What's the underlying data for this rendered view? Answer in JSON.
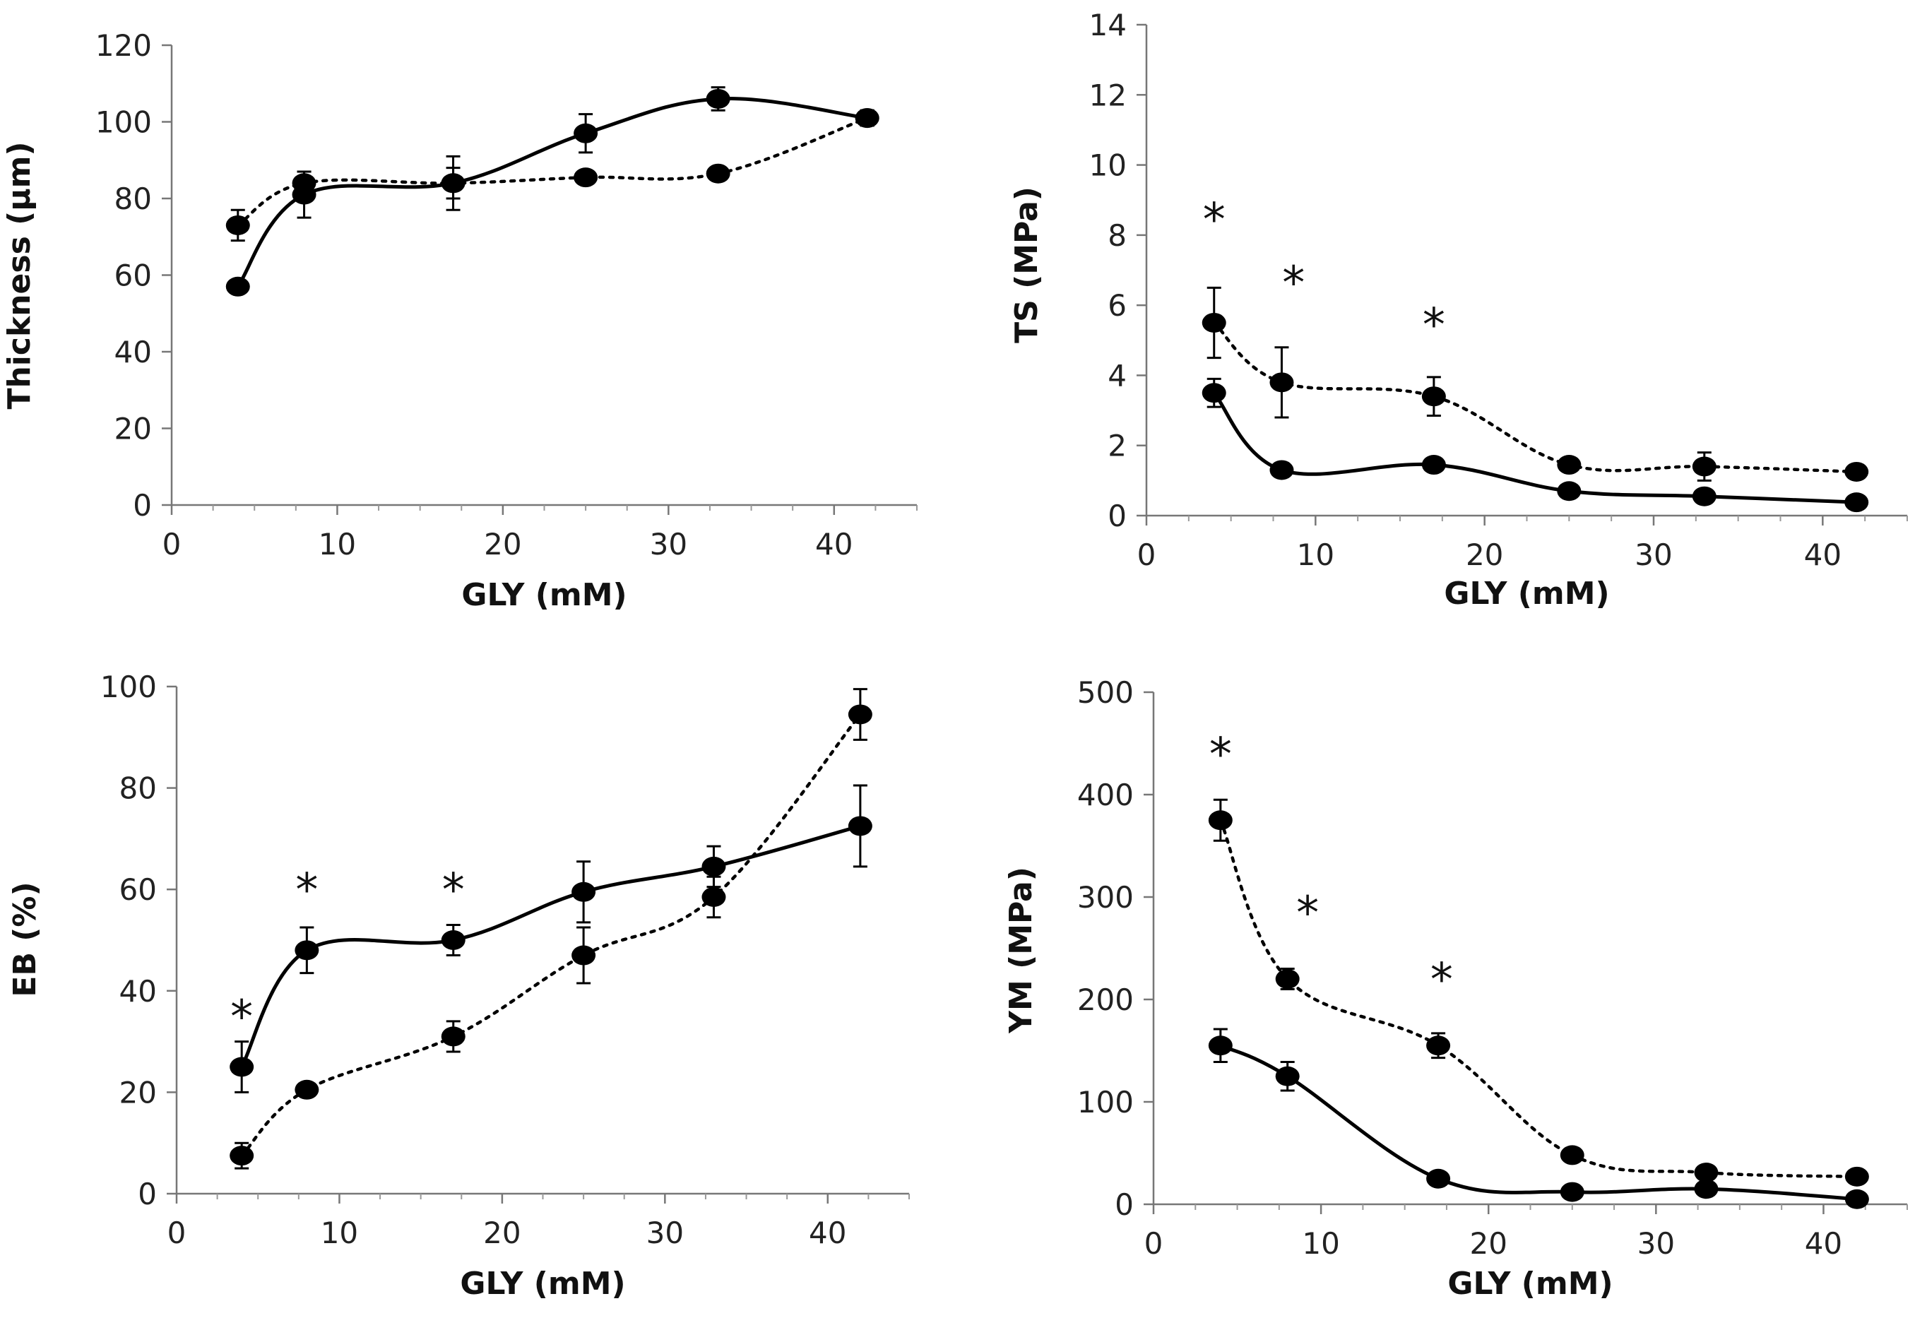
{
  "chart_data": [
    {
      "id": "thickness",
      "type": "line",
      "xlabel": "GLY (mM)",
      "ylabel": "Thickness (µm)",
      "xlim": [
        0,
        45
      ],
      "ylim": [
        0,
        120
      ],
      "xticks": [
        0,
        10,
        20,
        30,
        40
      ],
      "xtick_labels": [
        "0",
        "10",
        "20",
        "30",
        "40"
      ],
      "yticks": [
        0,
        20,
        40,
        60,
        80,
        100,
        120
      ],
      "ytick_labels": [
        "0",
        "20",
        "40",
        "60",
        "80",
        "100",
        "120"
      ],
      "x": [
        4,
        8,
        17,
        25,
        33,
        42
      ],
      "series": [
        {
          "name": "solid",
          "style": "solid",
          "values": [
            57,
            81,
            84,
            97,
            106,
            101
          ],
          "errors": [
            0,
            6,
            7,
            5,
            3,
            2
          ]
        },
        {
          "name": "dotted",
          "style": "dotted",
          "values": [
            73,
            84,
            84,
            85.5,
            86.5,
            101
          ],
          "errors": [
            4,
            3,
            4,
            0,
            0,
            2
          ]
        }
      ],
      "asterisks": []
    },
    {
      "id": "ts",
      "type": "line",
      "xlabel": "GLY (mM)",
      "ylabel": "TS (MPa)",
      "xlim": [
        0,
        45
      ],
      "ylim": [
        0,
        14
      ],
      "xticks": [
        0,
        10,
        20,
        30,
        40
      ],
      "xtick_labels": [
        "0",
        "10",
        "20",
        "30",
        "40"
      ],
      "yticks": [
        0,
        2,
        4,
        6,
        8,
        10,
        12,
        14
      ],
      "ytick_labels": [
        "0",
        "2",
        "4",
        "6",
        "8",
        "10",
        "12",
        "14"
      ],
      "x": [
        4,
        8,
        17,
        25,
        33,
        42
      ],
      "series": [
        {
          "name": "solid",
          "style": "solid",
          "values": [
            3.5,
            1.3,
            1.45,
            0.7,
            0.55,
            0.38
          ],
          "errors": [
            0.4,
            0.2,
            0.1,
            0.1,
            0.1,
            0.05
          ]
        },
        {
          "name": "dotted",
          "style": "dotted",
          "values": [
            5.5,
            3.8,
            3.4,
            1.45,
            1.4,
            1.25
          ],
          "errors": [
            1.0,
            1.0,
            0.55,
            0.1,
            0.4,
            0.1
          ]
        }
      ],
      "asterisks": [
        {
          "x": 4,
          "y": 8.6,
          "label": "*"
        },
        {
          "x": 8.7,
          "y": 6.8,
          "label": "*"
        },
        {
          "x": 17,
          "y": 5.6,
          "label": "*"
        }
      ]
    },
    {
      "id": "eb",
      "type": "line",
      "xlabel": "GLY (mM)",
      "ylabel": "EB (%)",
      "xlim": [
        0,
        45
      ],
      "ylim": [
        0,
        100
      ],
      "xticks": [
        0,
        10,
        20,
        30,
        40
      ],
      "xtick_labels": [
        "0",
        "10",
        "20",
        "30",
        "40"
      ],
      "yticks": [
        0,
        20,
        40,
        60,
        80,
        100
      ],
      "ytick_labels": [
        "0",
        "20",
        "40",
        "60",
        "80",
        "100"
      ],
      "x": [
        4,
        8,
        17,
        25,
        33,
        42
      ],
      "series": [
        {
          "name": "solid",
          "style": "solid",
          "values": [
            25,
            48,
            50,
            59.5,
            64.5,
            72.5
          ],
          "errors": [
            5,
            4.5,
            3,
            6,
            4,
            8
          ]
        },
        {
          "name": "dotted",
          "style": "dotted",
          "values": [
            7.5,
            20.5,
            31,
            47,
            58.5,
            94.5
          ],
          "errors": [
            2.5,
            1,
            3,
            5.5,
            4,
            5
          ]
        }
      ],
      "asterisks": [
        {
          "x": 4,
          "y": 36,
          "label": "*"
        },
        {
          "x": 8,
          "y": 61,
          "label": "*"
        },
        {
          "x": 17,
          "y": 61,
          "label": "*"
        }
      ]
    },
    {
      "id": "ym",
      "type": "line",
      "xlabel": "GLY (mM)",
      "ylabel": "YM (MPa)",
      "xlim": [
        0,
        45
      ],
      "ylim": [
        0,
        500
      ],
      "xticks": [
        0,
        10,
        20,
        30,
        40
      ],
      "xtick_labels": [
        "0",
        "10",
        "20",
        "30",
        "40"
      ],
      "yticks": [
        0,
        100,
        200,
        300,
        400,
        500
      ],
      "ytick_labels": [
        "0",
        "100",
        "200",
        "300",
        "400",
        "500"
      ],
      "x": [
        4,
        8,
        17,
        25,
        33,
        42
      ],
      "series": [
        {
          "name": "solid",
          "style": "solid",
          "values": [
            155,
            125,
            25,
            12,
            15,
            5
          ],
          "errors": [
            16,
            14,
            3,
            3,
            5,
            3
          ]
        },
        {
          "name": "dotted",
          "style": "dotted",
          "values": [
            375,
            220,
            155,
            48,
            31,
            27
          ],
          "errors": [
            20,
            10,
            12,
            3,
            3,
            3
          ]
        }
      ],
      "asterisks": [
        {
          "x": 4,
          "y": 445,
          "label": "*"
        },
        {
          "x": 9.2,
          "y": 290,
          "label": "*"
        },
        {
          "x": 17.2,
          "y": 225,
          "label": "*"
        }
      ]
    }
  ]
}
